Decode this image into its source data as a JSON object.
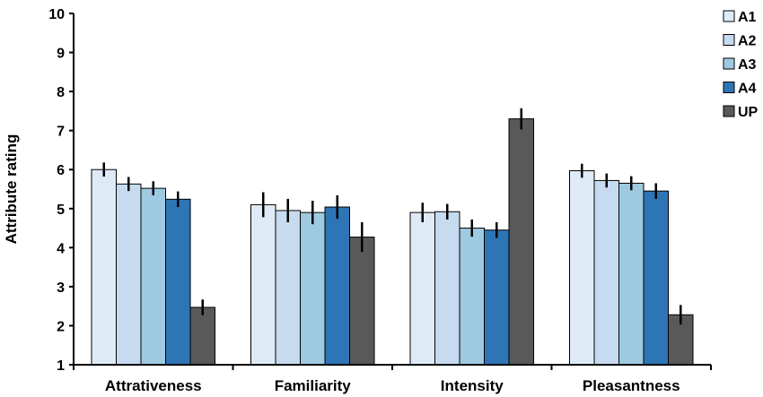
{
  "chart_data": {
    "type": "bar",
    "categories": [
      "Attrativeness",
      "Familiarity",
      "Intensity",
      "Pleasantness"
    ],
    "ylabel": "Attribute rating",
    "xlabel": "",
    "ylim": [
      1,
      10
    ],
    "yticks": [
      "1",
      "2",
      "3",
      "4",
      "5",
      "6",
      "7",
      "8",
      "9",
      "10"
    ],
    "grid": false,
    "legend_position": "right",
    "series": [
      {
        "name": "A1",
        "color": "#deebf7",
        "values": [
          6.0,
          5.1,
          4.9,
          5.97
        ],
        "errors": [
          0.18,
          0.32,
          0.25,
          0.18
        ]
      },
      {
        "name": "A2",
        "color": "#c6dbef",
        "values": [
          5.63,
          4.95,
          4.92,
          5.72
        ],
        "errors": [
          0.18,
          0.3,
          0.2,
          0.18
        ]
      },
      {
        "name": "A3",
        "color": "#9ecae1",
        "values": [
          5.52,
          4.9,
          4.5,
          5.65
        ],
        "errors": [
          0.18,
          0.3,
          0.22,
          0.18
        ]
      },
      {
        "name": "A4",
        "color": "#2e75b6",
        "values": [
          5.24,
          5.04,
          4.45,
          5.45
        ],
        "errors": [
          0.2,
          0.3,
          0.2,
          0.2
        ]
      },
      {
        "name": "UP",
        "color": "#595959",
        "values": [
          2.47,
          4.27,
          7.3,
          2.28
        ],
        "errors": [
          0.2,
          0.38,
          0.27,
          0.25
        ]
      }
    ]
  }
}
